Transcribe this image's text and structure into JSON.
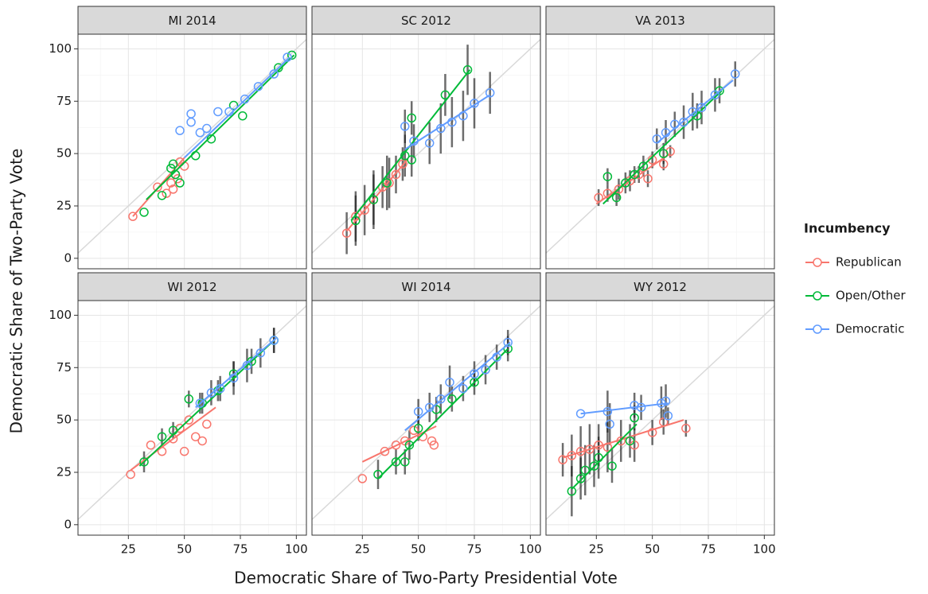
{
  "chart_data": {
    "type": "scatter",
    "xlabel": "Democratic Share of Two-Party Presidential Vote",
    "ylabel": "Democratic Share of Two-Party Vote",
    "legend_title": "Incumbency",
    "legend_position": "right",
    "grid": true,
    "xlim": [
      2.5,
      104.5
    ],
    "ylim": [
      -5,
      107
    ],
    "xticks": [
      25,
      50,
      75,
      100
    ],
    "yticks": [
      0,
      25,
      50,
      75,
      100
    ],
    "xminor": [
      12.5,
      37.5,
      62.5,
      87.5
    ],
    "yminor": [
      12.5,
      37.5,
      62.5,
      87.5
    ],
    "legend": [
      {
        "name": "Republican",
        "color": "#F8766D"
      },
      {
        "name": "Open/Other",
        "color": "#00BA38"
      },
      {
        "name": "Democratic",
        "color": "#619CFF"
      }
    ],
    "panels": [
      {
        "title": "MI 2014",
        "series": [
          {
            "x": [
              27,
              38,
              42,
              44,
              45,
              46,
              47,
              48,
              50
            ],
            "y": [
              20,
              34,
              31,
              36,
              33,
              40,
              38,
              46,
              44
            ],
            "fit_x": [
              27,
              50
            ],
            "fit_y": [
              20,
              48
            ]
          },
          {
            "x": [
              32,
              40,
              44,
              45,
              46,
              48,
              55,
              62,
              72,
              76,
              92,
              98
            ],
            "y": [
              22,
              30,
              43,
              45,
              40,
              36,
              49,
              57,
              73,
              68,
              91,
              97
            ],
            "fit_x": [
              33,
              99
            ],
            "fit_y": [
              28,
              97
            ]
          },
          {
            "x": [
              48,
              53,
              53,
              57,
              60,
              65,
              70,
              77,
              83,
              90,
              96
            ],
            "y": [
              61,
              69,
              65,
              60,
              62,
              70,
              70,
              76,
              82,
              88,
              96
            ],
            "fit_x": [
              50,
              97
            ],
            "fit_y": [
              48,
              96
            ]
          }
        ]
      },
      {
        "title": "SC 2012",
        "series": [
          {
            "x": [
              18,
              22,
              26,
              30,
              34,
              37,
              40,
              43
            ],
            "y": [
              12,
              20,
              23,
              28,
              34,
              36,
              40,
              45
            ],
            "errors": [
              10,
              12,
              12,
              14,
              10,
              12,
              9,
              8
            ],
            "fit_x": [
              18,
              45
            ],
            "fit_y": [
              13,
              47
            ]
          },
          {
            "x": [
              22,
              30,
              36,
              44,
              47,
              47,
              62,
              72
            ],
            "y": [
              18,
              28,
              36,
              49,
              47,
              67,
              78,
              90
            ],
            "errors": [
              12,
              12,
              13,
              10,
              8,
              8,
              10,
              12
            ],
            "fit_x": [
              20,
              73
            ],
            "fit_y": [
              18,
              90
            ]
          },
          {
            "x": [
              44,
              48,
              55,
              60,
              65,
              70,
              75,
              82
            ],
            "y": [
              63,
              56,
              55,
              62,
              65,
              68,
              74,
              79
            ],
            "errors": [
              8,
              8,
              10,
              12,
              12,
              12,
              12,
              10
            ],
            "fit_x": [
              44,
              82
            ],
            "fit_y": [
              52,
              78
            ]
          }
        ]
      },
      {
        "title": "VA 2013",
        "series": [
          {
            "x": [
              26,
              30,
              35,
              40,
              44,
              48,
              50,
              55,
              58
            ],
            "y": [
              29,
              31,
              33,
              37,
              40,
              38,
              47,
              45,
              51
            ],
            "errors": [
              4,
              4,
              5,
              5,
              4,
              4,
              4,
              3,
              3
            ],
            "fit_x": [
              25,
              58
            ],
            "fit_y": [
              26,
              50
            ]
          },
          {
            "x": [
              30,
              34,
              38,
              42,
              46,
              55,
              70,
              80
            ],
            "y": [
              39,
              29,
              36,
              40,
              44,
              50,
              68,
              80
            ],
            "errors": [
              4,
              4,
              5,
              4,
              5,
              5,
              6,
              6
            ],
            "fit_x": [
              28,
              81
            ],
            "fit_y": [
              26,
              80
            ]
          },
          {
            "x": [
              52,
              56,
              60,
              64,
              68,
              72,
              78,
              87
            ],
            "y": [
              57,
              60,
              64,
              65,
              70,
              72,
              78,
              88
            ],
            "errors": [
              5,
              6,
              6,
              8,
              9,
              8,
              8,
              6
            ],
            "fit_x": [
              52,
              86
            ],
            "fit_y": [
              55,
              85
            ]
          }
        ]
      },
      {
        "title": "WI 2012",
        "series": [
          {
            "x": [
              26,
              35,
              40,
              45,
              48,
              50,
              52,
              55,
              58,
              60
            ],
            "y": [
              24,
              38,
              35,
              41,
              46,
              35,
              50,
              42,
              40,
              48
            ],
            "fit_x": [
              26,
              64
            ],
            "fit_y": [
              26,
              56
            ]
          },
          {
            "x": [
              32,
              40,
              45,
              52,
              58,
              65,
              72,
              80,
              90
            ],
            "y": [
              30,
              42,
              45,
              60,
              58,
              64,
              72,
              78,
              88
            ],
            "errors": [
              5,
              4,
              4,
              4,
              5,
              5,
              6,
              6,
              6
            ],
            "fit_x": [
              30,
              90
            ],
            "fit_y": [
              28,
              88
            ]
          },
          {
            "x": [
              57,
              62,
              66,
              72,
              78,
              84,
              90
            ],
            "y": [
              58,
              63,
              65,
              70,
              76,
              82,
              88
            ],
            "errors": [
              5,
              6,
              6,
              8,
              8,
              7,
              6
            ],
            "fit_x": [
              55,
              91
            ],
            "fit_y": [
              56,
              89
            ]
          }
        ]
      },
      {
        "title": "WI 2014",
        "series": [
          {
            "x": [
              25,
              35,
              40,
              44,
              48,
              52,
              56,
              57
            ],
            "y": [
              22,
              35,
              38,
              40,
              45,
              42,
              40,
              38
            ],
            "fit_x": [
              25,
              58
            ],
            "fit_y": [
              30,
              47
            ]
          },
          {
            "x": [
              32,
              40,
              44,
              46,
              50,
              58,
              65,
              75,
              90
            ],
            "y": [
              24,
              30,
              30,
              38,
              46,
              55,
              60,
              68,
              84
            ],
            "errors": [
              7,
              6,
              6,
              7,
              6,
              6,
              6,
              6,
              6
            ],
            "fit_x": [
              32,
              90
            ],
            "fit_y": [
              22,
              84
            ]
          },
          {
            "x": [
              50,
              55,
              60,
              64,
              70,
              75,
              80,
              85,
              90
            ],
            "y": [
              54,
              56,
              60,
              68,
              65,
              72,
              74,
              80,
              87
            ],
            "errors": [
              6,
              7,
              7,
              8,
              6,
              6,
              7,
              6,
              6
            ],
            "fit_x": [
              44,
              91
            ],
            "fit_y": [
              45,
              87
            ]
          }
        ]
      },
      {
        "title": "WY 2012",
        "series": [
          {
            "x": [
              10,
              14,
              18,
              22,
              26,
              30,
              36,
              42,
              50,
              55,
              65
            ],
            "y": [
              31,
              33,
              35,
              36,
              38,
              37,
              40,
              38,
              44,
              49,
              46
            ],
            "errors": [
              8,
              10,
              12,
              12,
              10,
              12,
              10,
              8,
              6,
              6,
              4
            ],
            "fit_x": [
              10,
              64
            ],
            "fit_y": [
              32,
              50
            ]
          },
          {
            "x": [
              14,
              18,
              20,
              24,
              26,
              32,
              40,
              42
            ],
            "y": [
              16,
              22,
              26,
              28,
              32,
              28,
              40,
              51
            ],
            "errors": [
              12,
              10,
              12,
              10,
              10,
              8,
              8,
              6
            ],
            "fit_x": [
              14,
              43
            ],
            "fit_y": [
              17,
              48
            ]
          },
          {
            "x": [
              18,
              30,
              31,
              42,
              45,
              54,
              56,
              57
            ],
            "y": [
              53,
              54,
              48,
              57,
              56,
              58,
              59,
              52
            ],
            "errors": [
              0,
              10,
              10,
              6,
              6,
              8,
              8,
              4
            ],
            "fit_x": [
              18,
              57
            ],
            "fit_y": [
              53,
              58
            ]
          }
        ]
      }
    ]
  }
}
